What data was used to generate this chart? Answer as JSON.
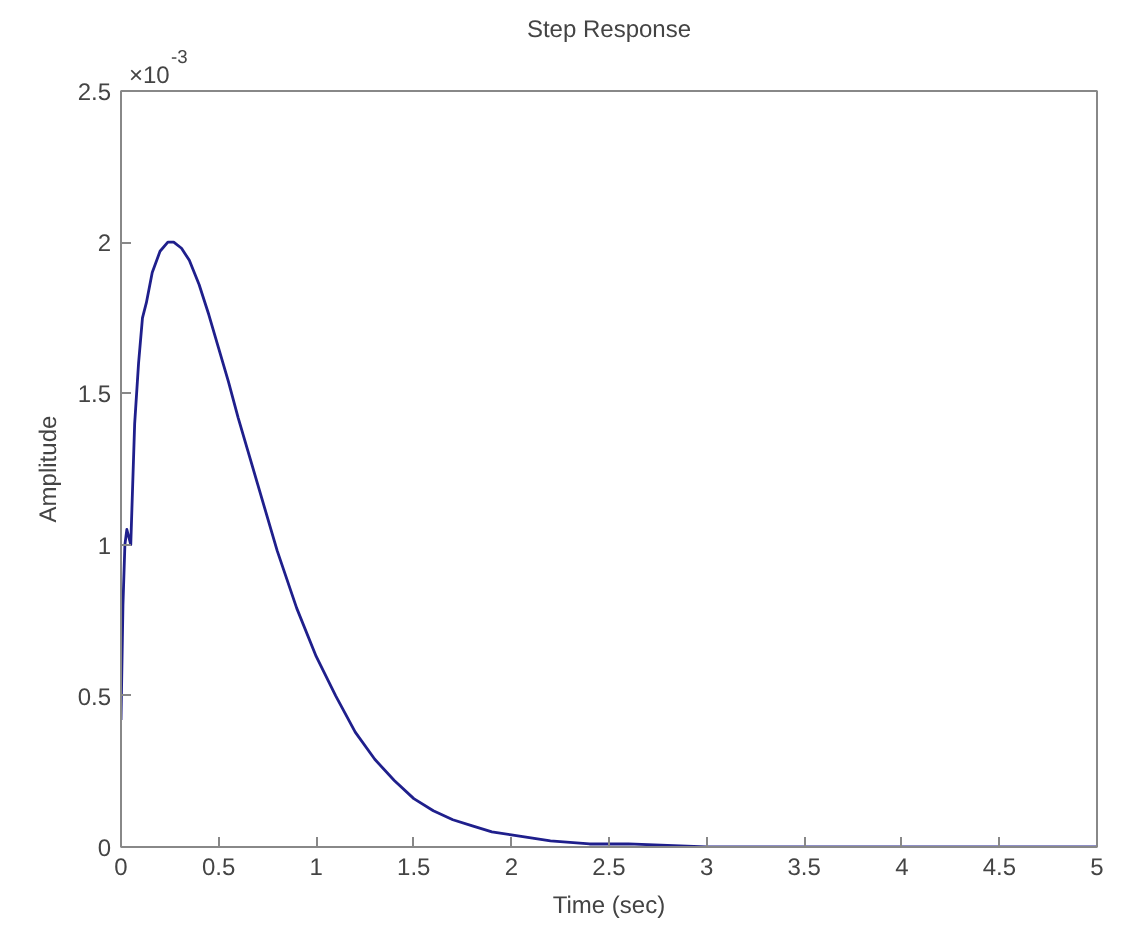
{
  "chart_data": {
    "type": "line",
    "title": "Step Response",
    "xlabel": "Time (sec)",
    "ylabel": "Amplitude",
    "annotations": [
      "×10$^{-3}$"
    ],
    "x": [
      0,
      0.01,
      0.02,
      0.03,
      0.05,
      0.07,
      0.09,
      0.11,
      0.13,
      0.16,
      0.2,
      0.24,
      0.27,
      0.31,
      0.35,
      0.4,
      0.45,
      0.5,
      0.55,
      0.6,
      0.65,
      0.7,
      0.8,
      0.9,
      1.0,
      1.1,
      1.2,
      1.3,
      1.4,
      1.5,
      1.6,
      1.7,
      1.8,
      1.9,
      2.0,
      2.2,
      2.4,
      2.6,
      3.0,
      3.5,
      4.0,
      4.5,
      5.0
    ],
    "series": [
      {
        "color": "#1f1f8c",
        "values": [
          0.42,
          0.8,
          1.0,
          1.05,
          1.0,
          1.4,
          1.6,
          1.75,
          1.8,
          1.9,
          1.97,
          2.0,
          2.0,
          1.98,
          1.94,
          1.86,
          1.76,
          1.65,
          1.54,
          1.42,
          1.31,
          1.2,
          0.98,
          0.79,
          0.63,
          0.5,
          0.38,
          0.29,
          0.22,
          0.16,
          0.12,
          0.09,
          0.07,
          0.05,
          0.04,
          0.02,
          0.01,
          0.01,
          0,
          0,
          0,
          0,
          0
        ]
      }
    ],
    "xlim": [
      0,
      5
    ],
    "ylim": [
      0,
      2.5
    ],
    "xticks": [
      0,
      0.5,
      1,
      1.5,
      2,
      2.5,
      3,
      3.5,
      4,
      4.5,
      5
    ],
    "yticks": [
      0,
      0.5,
      1,
      1.5,
      2,
      2.5
    ],
    "grid": false,
    "line_style": "solid"
  }
}
